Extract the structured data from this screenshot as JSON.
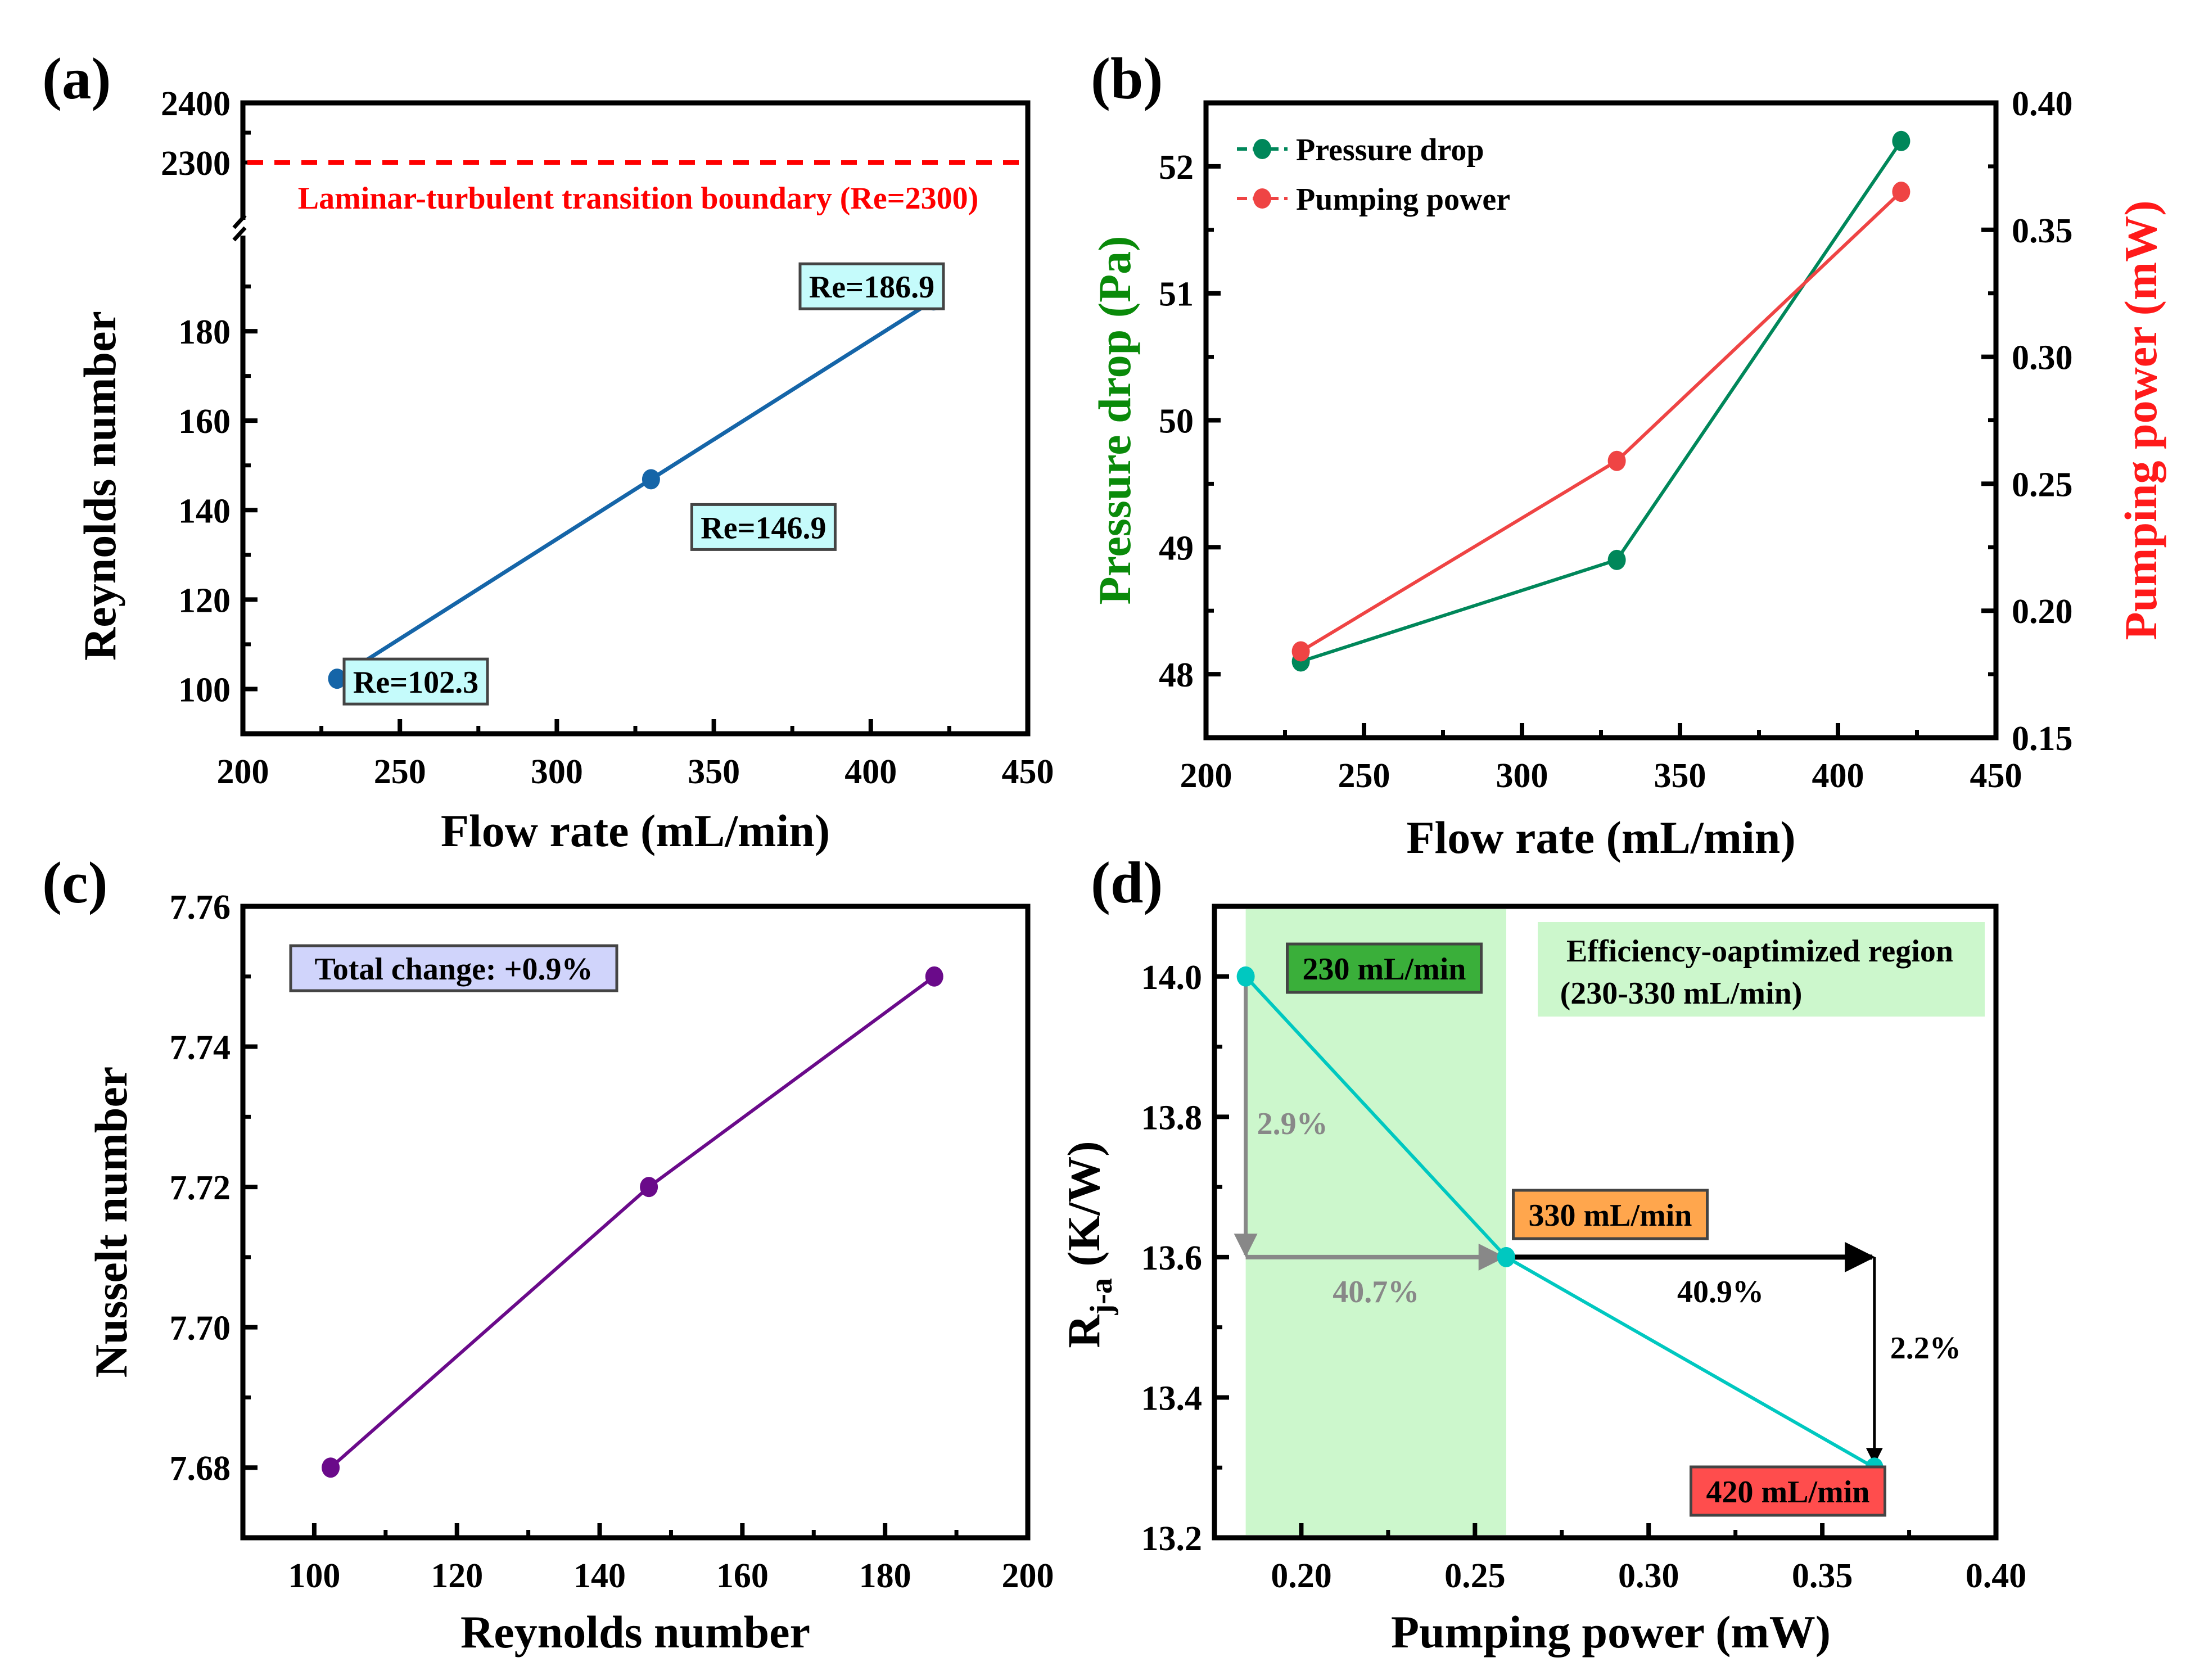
{
  "figure": {
    "panels": [
      "(a)",
      "(b)",
      "(c)",
      "(d)"
    ]
  },
  "chart_data": [
    {
      "id": "a",
      "type": "line",
      "panel_label": "(a)",
      "xlabel": "Flow rate (mL/min)",
      "ylabel": "Reynolds number",
      "xlim": [
        200,
        450
      ],
      "x_ticks": [
        200,
        250,
        300,
        350,
        400,
        450
      ],
      "ylim_lower": [
        90,
        200
      ],
      "ylim_upper": [
        2200,
        2400
      ],
      "y_ticks_lower": [
        100,
        120,
        140,
        160,
        180
      ],
      "y_ticks_upper": [
        2300,
        2400
      ],
      "axis_break": true,
      "series": [
        {
          "name": "Reynolds number",
          "color": "#1565a8",
          "x": [
            230,
            330,
            420
          ],
          "y": [
            102.3,
            146.9,
            186.9
          ]
        }
      ],
      "point_labels": [
        "Re=102.3",
        "Re=146.9",
        "Re=186.9"
      ],
      "label_box_color": "#c5fbfb",
      "reference_line": {
        "y": 2300,
        "color": "#ff0000",
        "style": "dashed",
        "label": "Laminar-turbulent transition boundary (Re=2300)"
      }
    },
    {
      "id": "b",
      "type": "line",
      "panel_label": "(b)",
      "xlabel": "Flow rate (mL/min)",
      "ylabel": "Pressure drop (Pa)",
      "ylabel_color": "#0a8a0a",
      "y2label": "Pumping power (mW)",
      "y2label_color": "#ff1a1a",
      "xlim": [
        200,
        450
      ],
      "x_ticks": [
        200,
        250,
        300,
        350,
        400,
        450
      ],
      "ylim": [
        47.5,
        52.5
      ],
      "y_ticks": [
        48,
        49,
        50,
        51,
        52
      ],
      "y2lim": [
        0.15,
        0.4
      ],
      "y2_ticks": [
        "0.15",
        "0.20",
        "0.25",
        "0.30",
        "0.35",
        "0.40"
      ],
      "legend_position": "top-left",
      "series": [
        {
          "name": "Pressure drop",
          "axis": "left",
          "color": "#00875a",
          "x": [
            230,
            330,
            420
          ],
          "y": [
            48.1,
            48.9,
            52.2
          ]
        },
        {
          "name": "Pumping power",
          "axis": "right",
          "color": "#ef4444",
          "x": [
            230,
            330,
            420
          ],
          "y": [
            0.184,
            0.259,
            0.365
          ]
        }
      ]
    },
    {
      "id": "c",
      "type": "line",
      "panel_label": "(c)",
      "xlabel": "Reynolds number",
      "ylabel": "Nusselt number",
      "xlim": [
        90,
        200
      ],
      "x_ticks": [
        100,
        120,
        140,
        160,
        180,
        200
      ],
      "ylim": [
        7.67,
        7.76
      ],
      "y_ticks": [
        "7.68",
        "7.70",
        "7.72",
        "7.74",
        "7.76"
      ],
      "series": [
        {
          "name": "Nusselt number",
          "color": "#6a0a8a",
          "x": [
            102.3,
            146.9,
            186.9
          ],
          "y": [
            7.68,
            7.72,
            7.75
          ]
        }
      ],
      "annotation": {
        "text": "Total change: +0.9%",
        "box_color": "#d0d4fb"
      }
    },
    {
      "id": "d",
      "type": "line",
      "panel_label": "(d)",
      "xlabel": "Pumping power (mW)",
      "ylabel_main": "R",
      "ylabel_sub": "j-a",
      "ylabel_unit": " (K/W)",
      "xlim": [
        0.175,
        0.4
      ],
      "x_ticks": [
        "0.20",
        "0.25",
        "0.30",
        "0.35",
        "0.40"
      ],
      "ylim": [
        13.2,
        14.1
      ],
      "y_ticks": [
        "13.2",
        "13.4",
        "13.6",
        "13.8",
        "14.0"
      ],
      "series": [
        {
          "name": "Rj-a",
          "color": "#00c8c0",
          "x": [
            0.184,
            0.259,
            0.365
          ],
          "y": [
            14.0,
            13.6,
            13.3
          ]
        }
      ],
      "point_labels": [
        {
          "text": "230 mL/min",
          "box_color": "#3aaf3a"
        },
        {
          "text": "330 mL/min",
          "box_color": "#ffa64d"
        },
        {
          "text": "420 mL/min",
          "box_color": "#ff4d4d"
        }
      ],
      "shaded_region": {
        "x_from": 0.184,
        "x_to": 0.259,
        "color": "#ccf7cc",
        "label_line1": "Efficiency-oaptimized region",
        "label_line2": "(230-330 mL/min)"
      },
      "arrows": [
        {
          "label": "2.9%",
          "color": "#888888",
          "direction": "down"
        },
        {
          "label": "40.7%",
          "color": "#888888",
          "direction": "right"
        },
        {
          "label": "40.9%",
          "color": "#000000",
          "direction": "right"
        },
        {
          "label": "2.2%",
          "color": "#000000",
          "direction": "down"
        }
      ]
    }
  ]
}
